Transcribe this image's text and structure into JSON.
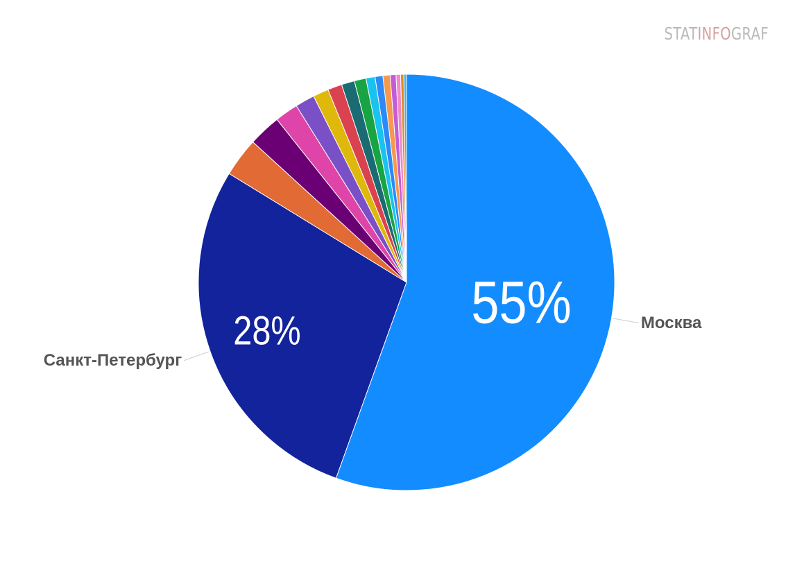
{
  "watermark": {
    "part1": "STAT",
    "part2": "INFO",
    "part3": "GRAF"
  },
  "chart_data": {
    "type": "pie",
    "start": "12 o'clock",
    "direction": "clockwise",
    "slices": [
      {
        "label": "Москва",
        "value": 55,
        "value_label": "55%",
        "color": "#128cff"
      },
      {
        "label": "Санкт-Петербург",
        "value": 28,
        "value_label": "28%",
        "color": "#12239b"
      },
      {
        "value": 3.0,
        "color": "#e26a35"
      },
      {
        "value": 2.5,
        "color": "#6b0075"
      },
      {
        "value": 1.8,
        "color": "#df45a8"
      },
      {
        "value": 1.5,
        "color": "#7a50c6"
      },
      {
        "value": 1.2,
        "color": "#dfb80c"
      },
      {
        "value": 1.1,
        "color": "#db4250"
      },
      {
        "value": 1.0,
        "color": "#1b6b72"
      },
      {
        "value": 0.9,
        "color": "#18a443"
      },
      {
        "value": 0.7,
        "color": "#1ac2ef"
      },
      {
        "value": 0.6,
        "color": "#2b8af7"
      },
      {
        "value": 0.55,
        "color": "#f6984d"
      },
      {
        "value": 0.45,
        "color": "#c25dd6"
      },
      {
        "value": 0.35,
        "color": "#f08bc6"
      },
      {
        "value": 0.25,
        "color": "#e08a2a"
      },
      {
        "value": 0.2,
        "color": "#48b0d6"
      }
    ]
  }
}
